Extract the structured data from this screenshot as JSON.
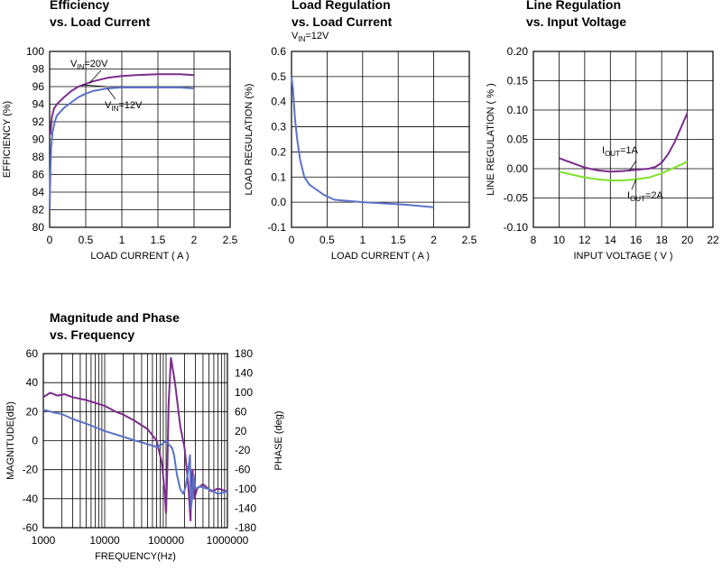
{
  "chart_data": [
    {
      "type": "line",
      "title": "Efficiency",
      "subtitle": "vs. Load Current",
      "xlabel": "LOAD CURRENT ( A )",
      "ylabel": "EFFICIENCY (%)",
      "xlim": [
        0,
        2.5
      ],
      "ylim": [
        80,
        100
      ],
      "xticks": [
        0,
        0.5,
        1,
        1.5,
        2,
        2.5
      ],
      "xtick_labels": [
        "0",
        "0.5",
        "1",
        "1.5",
        "2",
        "2.5"
      ],
      "yticks": [
        80,
        82,
        84,
        86,
        88,
        90,
        92,
        94,
        96,
        98,
        100
      ],
      "ytick_labels": [
        "80",
        "82",
        "84",
        "86",
        "88",
        "90",
        "92",
        "94",
        "96",
        "98",
        "100"
      ],
      "grid": true,
      "series": [
        {
          "name": "VIN=20V",
          "color": "#7b2c8c",
          "x": [
            0.01,
            0.03,
            0.06,
            0.1,
            0.2,
            0.3,
            0.4,
            0.5,
            0.6,
            0.8,
            1.0,
            1.2,
            1.5,
            1.8,
            2.0
          ],
          "y": [
            90.5,
            92.5,
            93.5,
            94.0,
            94.8,
            95.5,
            96.0,
            96.3,
            96.6,
            97.0,
            97.2,
            97.3,
            97.4,
            97.4,
            97.3
          ]
        },
        {
          "name": "VIN=12V",
          "color": "#5b72c9",
          "x": [
            0.0,
            0.01,
            0.02,
            0.04,
            0.07,
            0.1,
            0.2,
            0.3,
            0.4,
            0.5,
            0.6,
            0.8,
            1.0,
            1.2,
            1.5,
            1.8,
            2.0
          ],
          "y": [
            82.0,
            86.0,
            89.0,
            90.8,
            92.0,
            92.7,
            93.6,
            94.2,
            94.8,
            95.2,
            95.5,
            95.8,
            95.9,
            95.9,
            95.9,
            95.9,
            95.8
          ]
        }
      ],
      "annotations": [
        {
          "main": "V",
          "sub": "IN",
          "rest": "=20V"
        },
        {
          "main": "V",
          "sub": "IN",
          "rest": "=12V"
        }
      ]
    },
    {
      "type": "line",
      "title": "Load Regulation",
      "subtitle": "vs. Load Current",
      "condition": {
        "main": "V",
        "sub": "IN",
        "rest": "=12V"
      },
      "xlabel": "LOAD CURRENT ( A )",
      "ylabel": "LOAD REGULATION (%)",
      "xlim": [
        0,
        2.5
      ],
      "ylim": [
        -0.1,
        0.6
      ],
      "xticks": [
        0,
        0.5,
        1,
        1.5,
        2,
        2.5
      ],
      "xtick_labels": [
        "0",
        "0.5",
        "1",
        "1.5",
        "2",
        "2.5"
      ],
      "yticks": [
        -0.1,
        0.0,
        0.1,
        0.2,
        0.3,
        0.4,
        0.5,
        0.6
      ],
      "ytick_labels": [
        "-0.1",
        "0.0",
        "0.1",
        "0.2",
        "0.3",
        "0.4",
        "0.5",
        "0.6"
      ],
      "grid": true,
      "series": [
        {
          "color": "#5b72c9",
          "x": [
            0.0,
            0.02,
            0.05,
            0.08,
            0.12,
            0.18,
            0.25,
            0.35,
            0.45,
            0.6,
            0.8,
            1.0,
            1.3,
            1.6,
            2.0
          ],
          "y": [
            0.5,
            0.45,
            0.33,
            0.25,
            0.17,
            0.1,
            0.07,
            0.05,
            0.03,
            0.01,
            0.005,
            0.0,
            -0.005,
            -0.01,
            -0.02
          ]
        }
      ]
    },
    {
      "type": "line",
      "title": "Line Regulation",
      "subtitle": "vs. Input Voltage",
      "xlabel": "INPUT VOLTAGE ( V )",
      "ylabel": "LINE REGULATION ( % )",
      "xlim": [
        8,
        22
      ],
      "ylim": [
        -0.1,
        0.2
      ],
      "xticks": [
        8,
        10,
        12,
        14,
        16,
        18,
        20,
        22
      ],
      "xtick_labels": [
        "8",
        "10",
        "12",
        "14",
        "16",
        "18",
        "20",
        "22"
      ],
      "yticks": [
        -0.1,
        -0.05,
        0.0,
        0.05,
        0.1,
        0.15,
        0.2
      ],
      "ytick_labels": [
        "-0.10",
        "-0.05",
        "0.00",
        "0.05",
        "0.10",
        "0.15",
        "0.20"
      ],
      "grid": true,
      "series": [
        {
          "name": "IOUT=1A",
          "color": "#7b2c8c",
          "x": [
            10,
            11,
            12,
            13,
            14,
            15,
            16,
            17,
            17.5,
            18,
            18.5,
            19,
            19.5,
            20
          ],
          "y": [
            0.018,
            0.01,
            0.002,
            -0.003,
            -0.005,
            -0.004,
            -0.002,
            0.0,
            0.003,
            0.01,
            0.025,
            0.045,
            0.07,
            0.095
          ]
        },
        {
          "name": "IOUT=2A",
          "color": "#7ee32b",
          "x": [
            10,
            11,
            12,
            13,
            14,
            15,
            16,
            17,
            18,
            19,
            20
          ],
          "y": [
            -0.005,
            -0.01,
            -0.015,
            -0.018,
            -0.02,
            -0.02,
            -0.018,
            -0.015,
            -0.008,
            0.002,
            0.012
          ]
        }
      ],
      "annotations": [
        {
          "main": "I",
          "sub": "OUT",
          "rest": "=1A"
        },
        {
          "main": "I",
          "sub": "OUT",
          "rest": "=2A"
        }
      ]
    },
    {
      "type": "line",
      "title": "Magnitude and Phase",
      "subtitle": "vs. Frequency",
      "xlabel": "FREQUENCY(Hz)",
      "ylabel": "MAGNITUDE(dB)",
      "y2label": "PHASE (deg)",
      "xscale": "log",
      "xlim": [
        1000,
        1000000
      ],
      "ylim": [
        -60,
        60
      ],
      "y2lim": [
        -180,
        180
      ],
      "xticks": [
        1000,
        10000,
        100000,
        1000000
      ],
      "xtick_labels": [
        "1000",
        "10000",
        "100000",
        "1000000"
      ],
      "yticks": [
        -60,
        -40,
        -20,
        0,
        20,
        40,
        60
      ],
      "ytick_labels": [
        "-60",
        "-40",
        "-20",
        "0",
        "20",
        "40",
        "60"
      ],
      "y2ticks": [
        -180,
        -140,
        -100,
        -60,
        -20,
        20,
        60,
        100,
        140,
        180
      ],
      "y2tick_labels": [
        "-180",
        "-140",
        "-100",
        "-60",
        "-20",
        "20",
        "60",
        "100",
        "140",
        "180"
      ],
      "grid": true,
      "series": [
        {
          "name": "MAGNITUDE",
          "axis": "left",
          "color": "#7b2c8c",
          "x": [
            1000,
            1300,
            1700,
            2200,
            3000,
            5000,
            7000,
            10000,
            15000,
            20000,
            30000,
            50000,
            70000,
            85000,
            95000,
            100000,
            105000,
            110000,
            120000,
            140000,
            170000,
            200000,
            230000,
            250000,
            260000,
            270000,
            290000,
            320000,
            400000,
            550000,
            700000,
            1000000
          ],
          "y": [
            30,
            33,
            31,
            32,
            30,
            28,
            26,
            24,
            20,
            18,
            14,
            8,
            0,
            -15,
            -35,
            -50,
            -20,
            25,
            57,
            40,
            10,
            -5,
            -30,
            -55,
            -25,
            -20,
            -40,
            -33,
            -30,
            -35,
            -33,
            -35
          ]
        },
        {
          "name": "PHASE",
          "axis": "right",
          "color": "#5b72c9",
          "x": [
            1000,
            1500,
            2000,
            3000,
            5000,
            7000,
            10000,
            15000,
            20000,
            30000,
            50000,
            70000,
            85000,
            100000,
            115000,
            125000,
            135000,
            150000,
            170000,
            190000,
            210000,
            230000,
            245000,
            255000,
            265000,
            280000,
            300000,
            350000,
            500000,
            700000,
            1000000
          ],
          "y": [
            64,
            58,
            55,
            45,
            35,
            28,
            20,
            13,
            8,
            1,
            -7,
            -13,
            -8,
            0,
            -10,
            -15,
            -30,
            -70,
            -100,
            -110,
            -95,
            -60,
            -30,
            -140,
            -120,
            -70,
            -100,
            -95,
            -100,
            -110,
            -105
          ]
        }
      ]
    }
  ]
}
